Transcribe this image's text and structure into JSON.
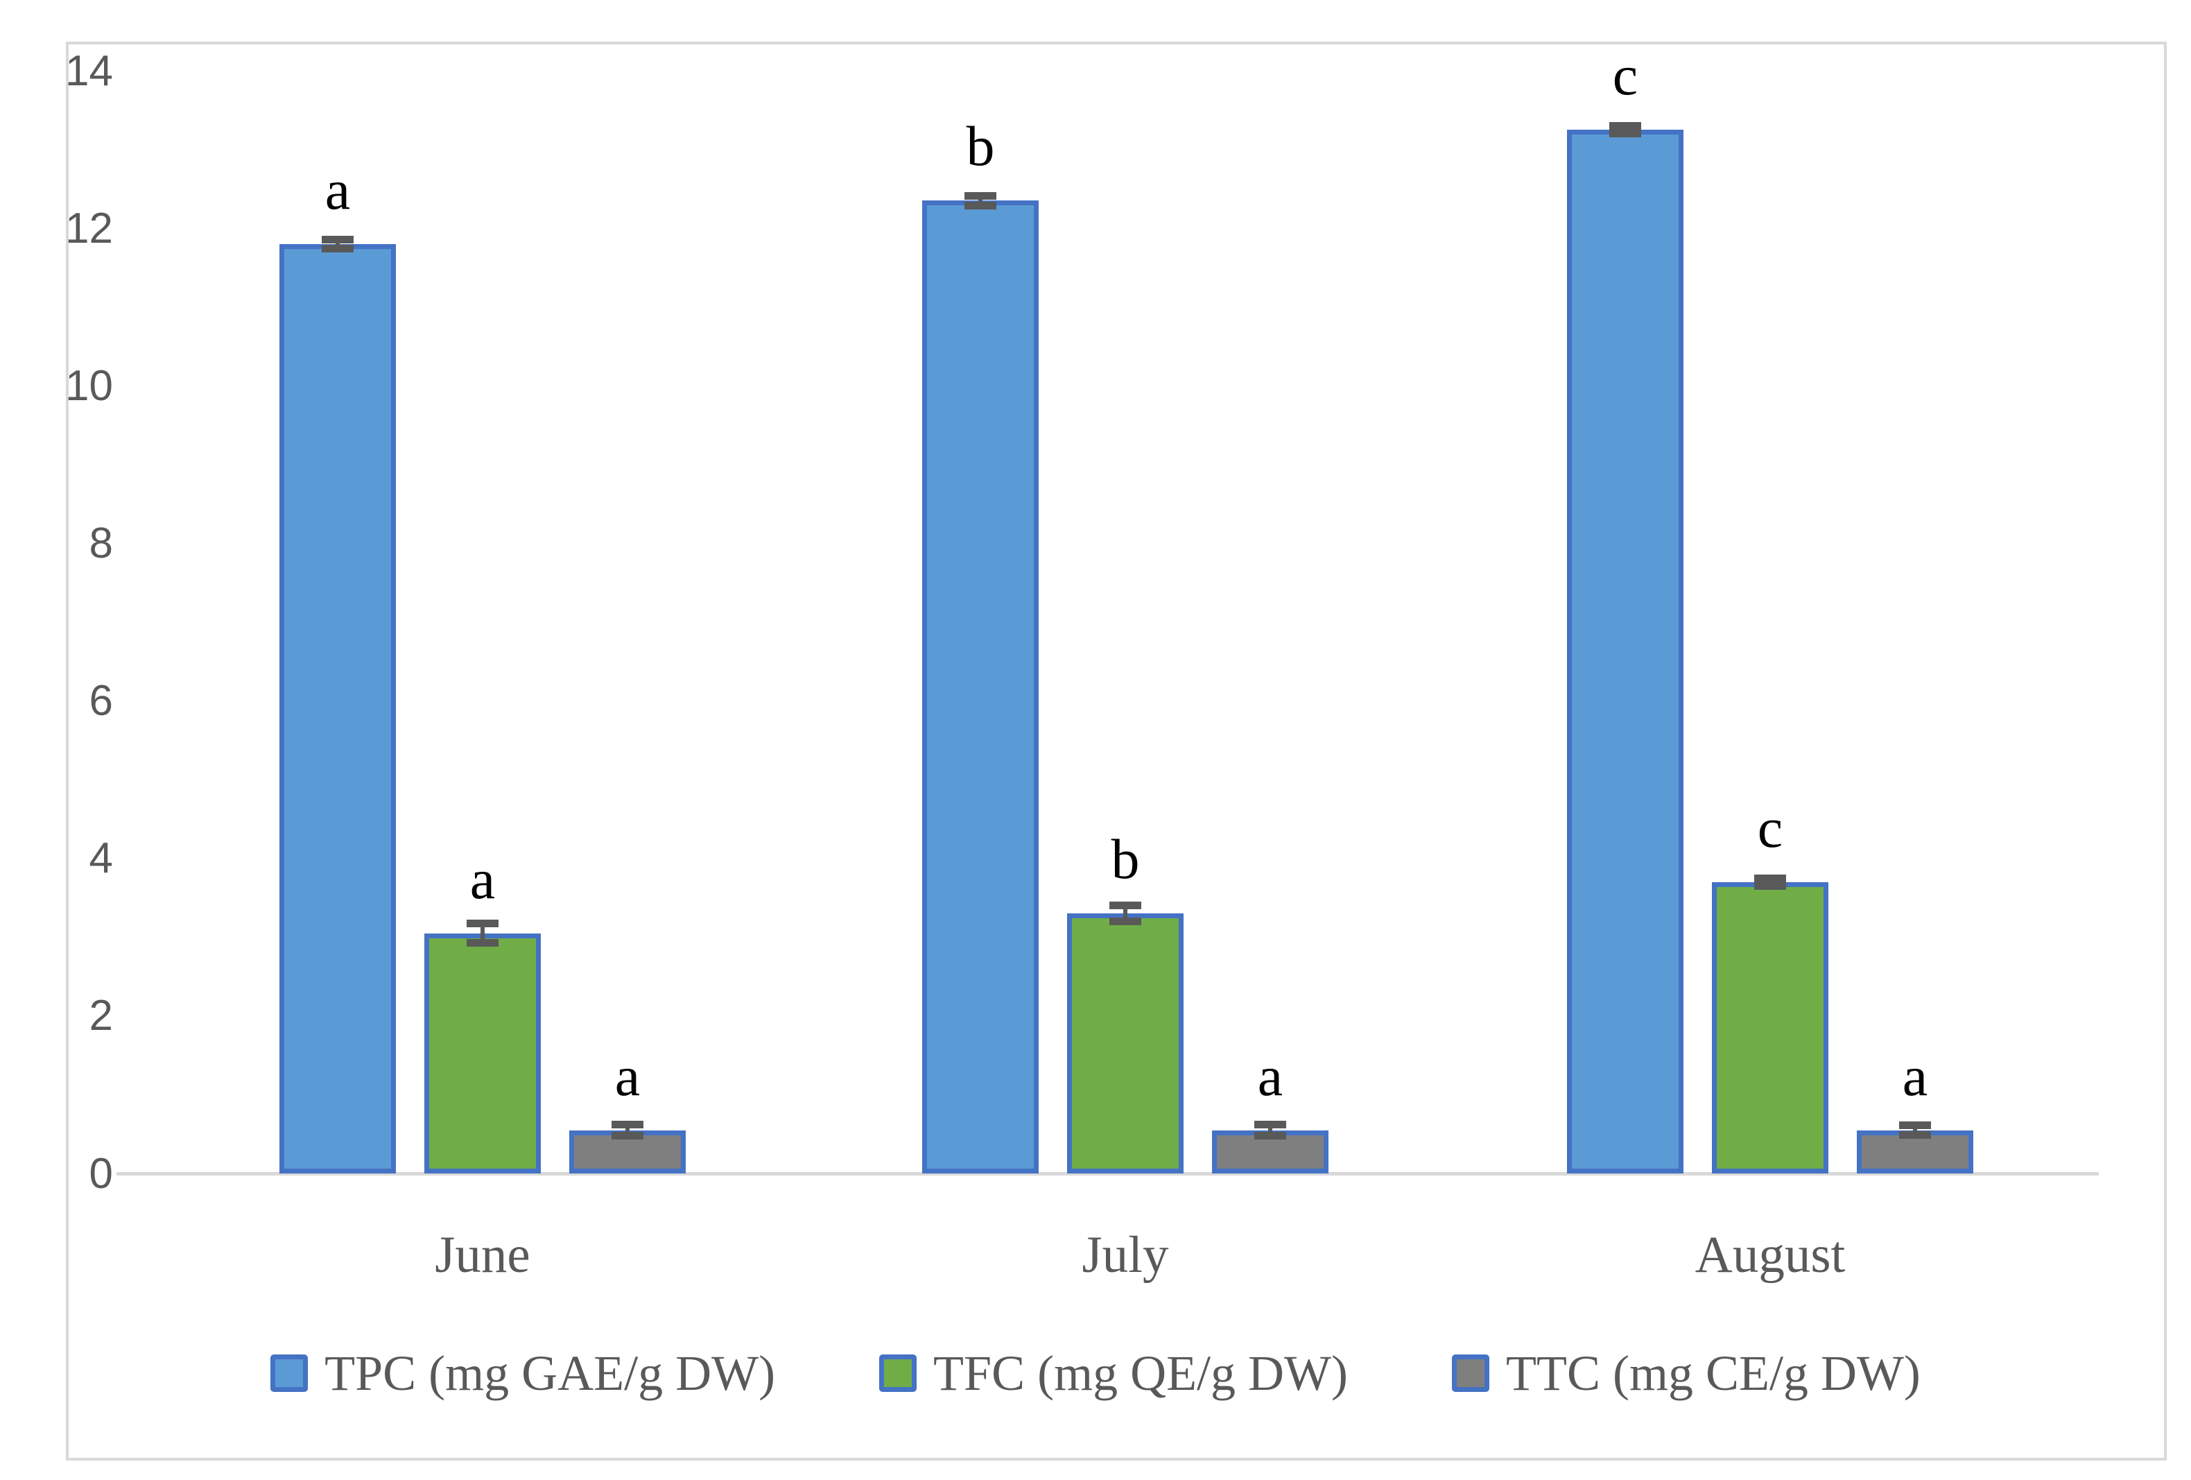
{
  "figure": {
    "background": "#FFFFFF",
    "border_color": "#D9D9D9"
  },
  "chart_data": {
    "type": "bar",
    "title": "",
    "xlabel": "",
    "ylabel": "",
    "grid": false,
    "legend_position": "bottom",
    "categories": [
      "June",
      "July",
      "August"
    ],
    "series": [
      {
        "name": "TPC (mg GAE/g DW)",
        "fill": "#5B9BD5",
        "values": [
          11.8,
          12.35,
          13.25
        ],
        "errors": [
          0.06,
          0.06,
          0.05
        ],
        "letters": [
          "a",
          "b",
          "c"
        ]
      },
      {
        "name": "TFC (mg QE/g DW)",
        "fill": "#70AD47",
        "values": [
          3.05,
          3.3,
          3.7
        ],
        "errors": [
          0.12,
          0.1,
          0.05
        ],
        "letters": [
          "a",
          "b",
          "c"
        ]
      },
      {
        "name": "TTC (mg CE/g DW)",
        "fill": "#7F7F7F",
        "values": [
          0.55,
          0.55,
          0.55
        ],
        "errors": [
          0.07,
          0.07,
          0.06
        ],
        "letters": [
          "a",
          "a",
          "a"
        ]
      }
    ],
    "bar_border_color": "#4472C4",
    "error_bar_color": "#595959",
    "significance_letter_color": "#000000",
    "axis": {
      "ymin": 0,
      "ymax": 14,
      "ytick_step": 2,
      "ytick_labels": [
        "0",
        "2",
        "4",
        "6",
        "8",
        "10",
        "12",
        "14"
      ],
      "line_color": "#D9D9D9",
      "tick_label_color": "#595959"
    }
  }
}
